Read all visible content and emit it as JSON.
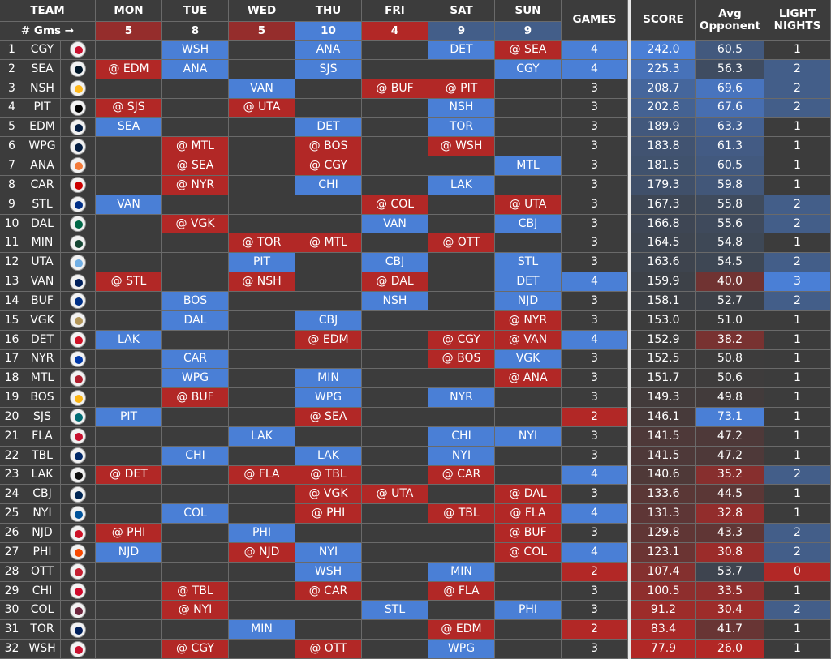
{
  "header": {
    "team": "TEAM",
    "days": [
      "MON",
      "TUE",
      "WED",
      "THU",
      "FRI",
      "SAT",
      "SUN"
    ],
    "games": "GAMES",
    "score": "SCORE",
    "avg_opponent": "Avg Opponent",
    "light_nights": "LIGHT NIGHTS",
    "gms_label": "# Gms →",
    "day_counts": [
      "5",
      "8",
      "5",
      "10",
      "4",
      "9",
      "9"
    ]
  },
  "table": {
    "rows": [
      [
        "1",
        "CGY",
        null,
        "WSH",
        null,
        "ANA",
        null,
        "DET",
        "@ SEA",
        "4",
        "242.0",
        "60.5",
        "1"
      ],
      [
        "2",
        "SEA",
        "@ EDM",
        "ANA",
        null,
        "SJS",
        null,
        null,
        "CGY",
        "4",
        "225.3",
        "56.3",
        "2"
      ],
      [
        "3",
        "NSH",
        null,
        null,
        "VAN",
        null,
        "@ BUF",
        "@ PIT",
        null,
        "3",
        "208.7",
        "69.6",
        "2"
      ],
      [
        "4",
        "PIT",
        "@ SJS",
        null,
        "@ UTA",
        null,
        null,
        "NSH",
        null,
        "3",
        "202.8",
        "67.6",
        "2"
      ],
      [
        "5",
        "EDM",
        "SEA",
        null,
        null,
        "DET",
        null,
        "TOR",
        null,
        "3",
        "189.9",
        "63.3",
        "1"
      ],
      [
        "6",
        "WPG",
        null,
        "@ MTL",
        null,
        "@ BOS",
        null,
        "@ WSH",
        null,
        "3",
        "183.8",
        "61.3",
        "1"
      ],
      [
        "7",
        "ANA",
        null,
        "@ SEA",
        null,
        "@ CGY",
        null,
        null,
        "MTL",
        "3",
        "181.5",
        "60.5",
        "1"
      ],
      [
        "8",
        "CAR",
        null,
        "@ NYR",
        null,
        "CHI",
        null,
        "LAK",
        null,
        "3",
        "179.3",
        "59.8",
        "1"
      ],
      [
        "9",
        "STL",
        "VAN",
        null,
        null,
        null,
        "@ COL",
        null,
        "@ UTA",
        "3",
        "167.3",
        "55.8",
        "2"
      ],
      [
        "10",
        "DAL",
        null,
        "@ VGK",
        null,
        null,
        "VAN",
        null,
        "CBJ",
        "3",
        "166.8",
        "55.6",
        "2"
      ],
      [
        "11",
        "MIN",
        null,
        null,
        "@ TOR",
        "@ MTL",
        null,
        "@ OTT",
        null,
        "3",
        "164.5",
        "54.8",
        "1"
      ],
      [
        "12",
        "UTA",
        null,
        null,
        "PIT",
        null,
        "CBJ",
        null,
        "STL",
        "3",
        "163.6",
        "54.5",
        "2"
      ],
      [
        "13",
        "VAN",
        "@ STL",
        null,
        "@ NSH",
        null,
        "@ DAL",
        null,
        "DET",
        "4",
        "159.9",
        "40.0",
        "3"
      ],
      [
        "14",
        "BUF",
        null,
        "BOS",
        null,
        null,
        "NSH",
        null,
        "NJD",
        "3",
        "158.1",
        "52.7",
        "2"
      ],
      [
        "15",
        "VGK",
        null,
        "DAL",
        null,
        "CBJ",
        null,
        null,
        "@ NYR",
        "3",
        "153.0",
        "51.0",
        "1"
      ],
      [
        "16",
        "DET",
        "LAK",
        null,
        null,
        "@ EDM",
        null,
        "@ CGY",
        "@ VAN",
        "4",
        "152.9",
        "38.2",
        "1"
      ],
      [
        "17",
        "NYR",
        null,
        "CAR",
        null,
        null,
        null,
        "@ BOS",
        "VGK",
        "3",
        "152.5",
        "50.8",
        "1"
      ],
      [
        "18",
        "MTL",
        null,
        "WPG",
        null,
        "MIN",
        null,
        null,
        "@ ANA",
        "3",
        "151.7",
        "50.6",
        "1"
      ],
      [
        "19",
        "BOS",
        null,
        "@ BUF",
        null,
        "WPG",
        null,
        "NYR",
        null,
        "3",
        "149.3",
        "49.8",
        "1"
      ],
      [
        "20",
        "SJS",
        "PIT",
        null,
        null,
        "@ SEA",
        null,
        null,
        null,
        "2",
        "146.1",
        "73.1",
        "1"
      ],
      [
        "21",
        "FLA",
        null,
        null,
        "LAK",
        null,
        null,
        "CHI",
        "NYI",
        "3",
        "141.5",
        "47.2",
        "1"
      ],
      [
        "22",
        "TBL",
        null,
        "CHI",
        null,
        "LAK",
        null,
        "NYI",
        null,
        "3",
        "141.5",
        "47.2",
        "1"
      ],
      [
        "23",
        "LAK",
        "@ DET",
        null,
        "@ FLA",
        "@ TBL",
        null,
        "@ CAR",
        null,
        "4",
        "140.6",
        "35.2",
        "2"
      ],
      [
        "24",
        "CBJ",
        null,
        null,
        null,
        "@ VGK",
        "@ UTA",
        null,
        "@ DAL",
        "3",
        "133.6",
        "44.5",
        "1"
      ],
      [
        "25",
        "NYI",
        null,
        "COL",
        null,
        "@ PHI",
        null,
        "@ TBL",
        "@ FLA",
        "4",
        "131.3",
        "32.8",
        "1"
      ],
      [
        "26",
        "NJD",
        "@ PHI",
        null,
        "PHI",
        null,
        null,
        null,
        "@ BUF",
        "3",
        "129.8",
        "43.3",
        "2"
      ],
      [
        "27",
        "PHI",
        "NJD",
        null,
        "@ NJD",
        "NYI",
        null,
        null,
        "@ COL",
        "4",
        "123.1",
        "30.8",
        "2"
      ],
      [
        "28",
        "OTT",
        null,
        null,
        null,
        "WSH",
        null,
        "MIN",
        null,
        "2",
        "107.4",
        "53.7",
        "0"
      ],
      [
        "29",
        "CHI",
        null,
        "@ TBL",
        null,
        "@ CAR",
        null,
        "@ FLA",
        null,
        "3",
        "100.5",
        "33.5",
        "1"
      ],
      [
        "30",
        "COL",
        null,
        "@ NYI",
        null,
        null,
        "STL",
        null,
        "PHI",
        "3",
        "91.2",
        "30.4",
        "2"
      ],
      [
        "31",
        "TOR",
        null,
        null,
        "MIN",
        null,
        null,
        "@ EDM",
        null,
        "2",
        "83.4",
        "41.7",
        "1"
      ],
      [
        "32",
        "WSH",
        null,
        "@ CGY",
        null,
        "@ OTT",
        null,
        "WPG",
        null,
        "3",
        "77.9",
        "26.0",
        "1"
      ]
    ]
  }
}
